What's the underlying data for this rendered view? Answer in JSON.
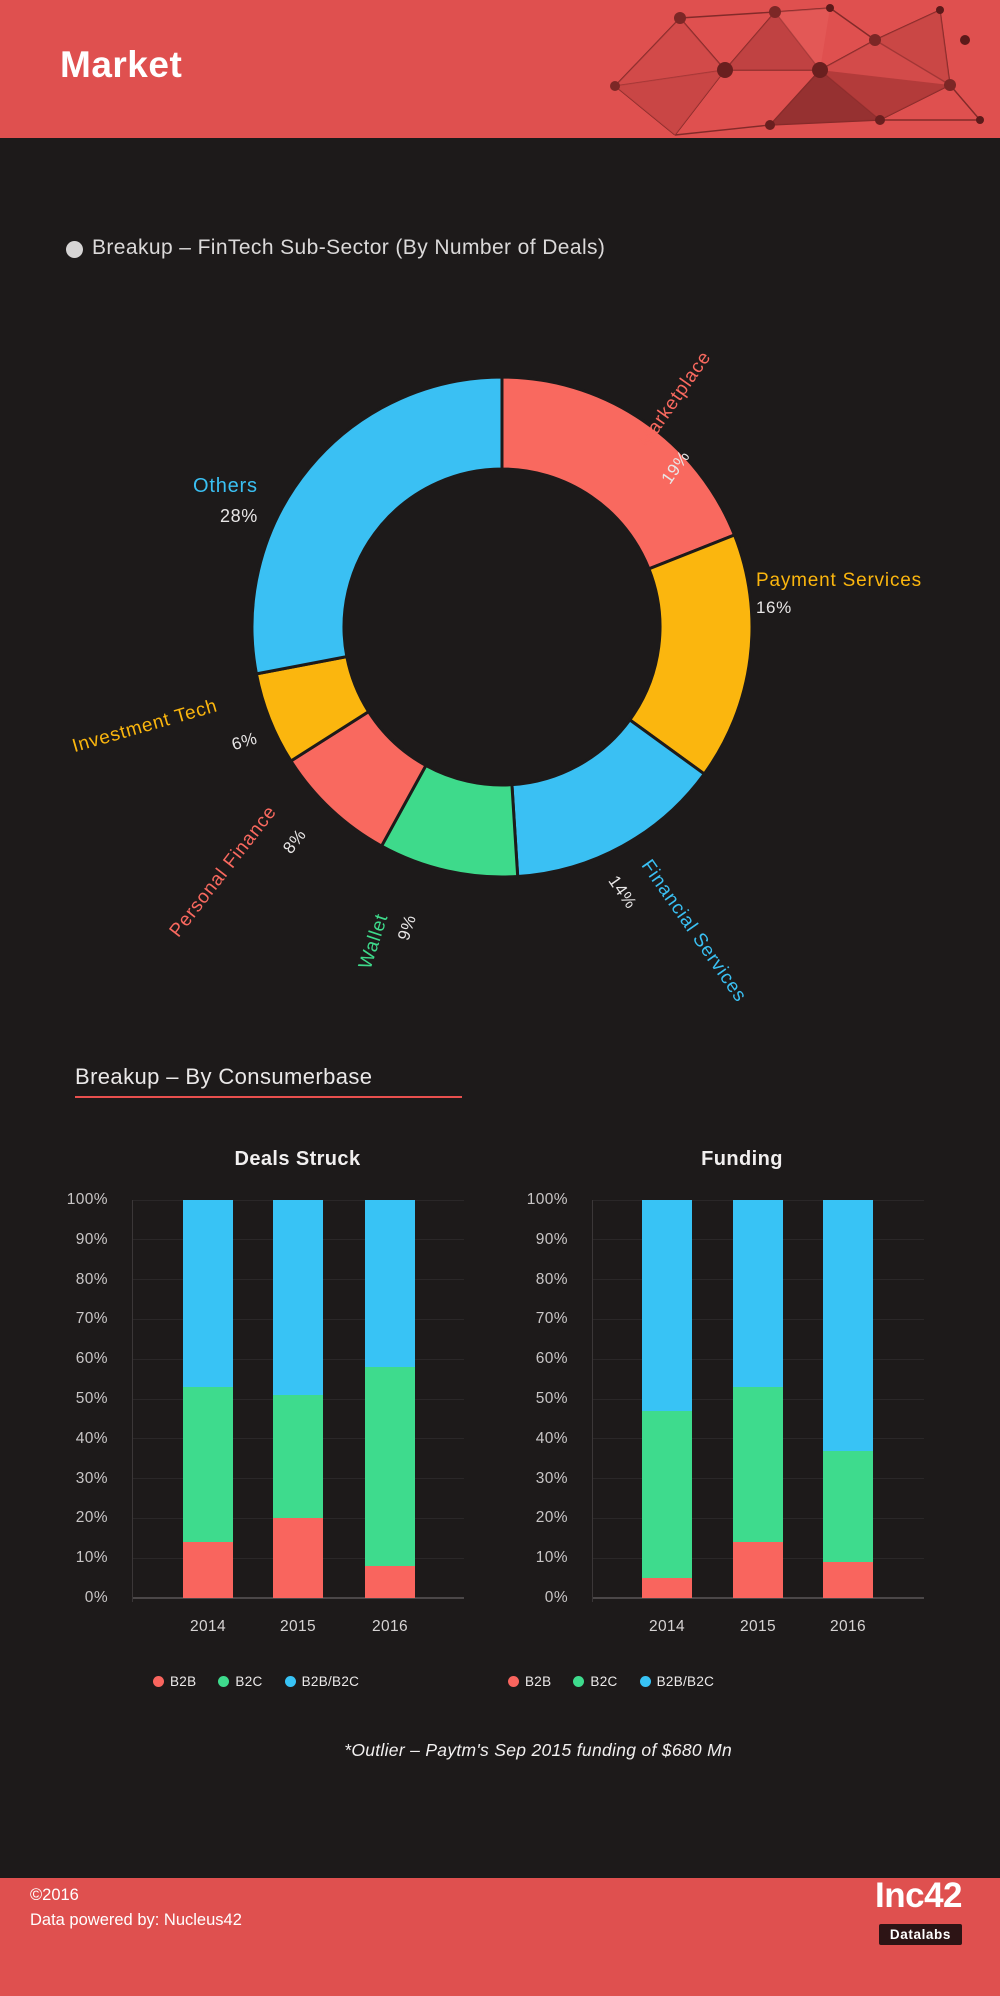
{
  "header": {
    "title": "Market",
    "bg_color": "#df504f"
  },
  "donut_section": {
    "title": "Breakup – FinTech Sub-Sector (By Number of Deals)"
  },
  "consumerbase_section": {
    "title": "Breakup – By Consumerbase"
  },
  "footnote": "*Outlier – Paytm's Sep 2015 funding of $680 Mn",
  "footer": {
    "copyright": "©2016",
    "powered_by": "Data powered by: Nucleus42",
    "brand": "Inc42",
    "brand_sub": "Datalabs"
  },
  "chart_data": [
    {
      "type": "pie",
      "donut": true,
      "title": "Breakup – FinTech Sub-Sector (By Number of Deals)",
      "start_angle_deg": 0,
      "direction": "clockwise",
      "segments": [
        {
          "label": "Marketplace",
          "value": 19,
          "pct": "19%",
          "color": "#f9695f"
        },
        {
          "label": "Payment Services",
          "value": 16,
          "pct": "16%",
          "color": "#fbb60e"
        },
        {
          "label": "Financial Services",
          "value": 14,
          "pct": "14%",
          "color": "#3ac0f3"
        },
        {
          "label": "Wallet",
          "value": 9,
          "pct": "9%",
          "color": "#3eda8b"
        },
        {
          "label": "Personal Finance",
          "value": 8,
          "pct": "8%",
          "color": "#f9695f"
        },
        {
          "label": "Investment Tech",
          "value": 6,
          "pct": "6%",
          "color": "#fbb60e"
        },
        {
          "label": "Others",
          "value": 28,
          "pct": "28%",
          "color": "#3ac0f3"
        }
      ]
    },
    {
      "type": "bar",
      "stacked": true,
      "title": "Deals Struck",
      "categories": [
        "2014",
        "2015",
        "2016"
      ],
      "yticks": [
        "0%",
        "10%",
        "20%",
        "30%",
        "40%",
        "50%",
        "60%",
        "70%",
        "80%",
        "90%",
        "100%"
      ],
      "ylim": [
        0,
        100
      ],
      "grid": true,
      "legend_position": "bottom",
      "series": [
        {
          "name": "B2B",
          "color": "#f9655e",
          "values": [
            14,
            20,
            8
          ]
        },
        {
          "name": "B2C",
          "color": "#3edb8d",
          "values": [
            39,
            31,
            50
          ]
        },
        {
          "name": "B2B/B2C",
          "color": "#38c3f5",
          "values": [
            47,
            49,
            42
          ]
        }
      ]
    },
    {
      "type": "bar",
      "stacked": true,
      "title": "Funding",
      "categories": [
        "2014",
        "2015",
        "2016"
      ],
      "yticks": [
        "0%",
        "10%",
        "20%",
        "30%",
        "40%",
        "50%",
        "60%",
        "70%",
        "80%",
        "90%",
        "100%"
      ],
      "ylim": [
        0,
        100
      ],
      "grid": true,
      "legend_position": "bottom",
      "series": [
        {
          "name": "B2B",
          "color": "#f9655e",
          "values": [
            5,
            14,
            9
          ]
        },
        {
          "name": "B2C",
          "color": "#3edb8d",
          "values": [
            42,
            39,
            28
          ]
        },
        {
          "name": "B2B/B2C",
          "color": "#38c3f5",
          "values": [
            53,
            47,
            63
          ]
        }
      ]
    }
  ]
}
